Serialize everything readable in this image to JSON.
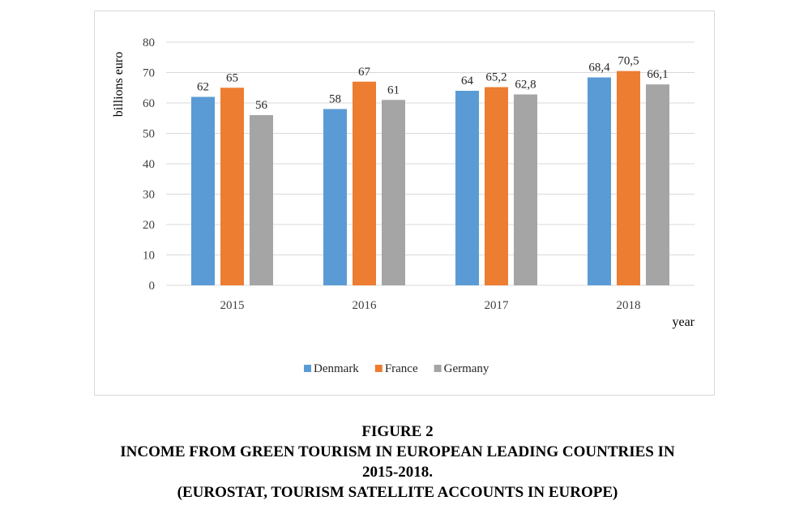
{
  "chart_data": {
    "type": "bar",
    "categories": [
      "2015",
      "2016",
      "2017",
      "2018"
    ],
    "series": [
      {
        "name": "Denmark",
        "color": "#5b9bd5",
        "values": [
          62,
          58,
          64,
          68.4
        ],
        "labels": [
          "62",
          "58",
          "64",
          "68,4"
        ]
      },
      {
        "name": "France",
        "color": "#ed7d31",
        "values": [
          65,
          67,
          65.2,
          70.5
        ],
        "labels": [
          "65",
          "67",
          "65,2",
          "70,5"
        ]
      },
      {
        "name": "Germany",
        "color": "#a5a5a5",
        "values": [
          56,
          61,
          62.8,
          66.1
        ],
        "labels": [
          "56",
          "61",
          "62,8",
          "66,1"
        ]
      }
    ],
    "ylabel": "billions euro",
    "xlabel": "year",
    "ylim": [
      0,
      80
    ],
    "yticks": [
      0,
      10,
      20,
      30,
      40,
      50,
      60,
      70,
      80
    ],
    "grid": true,
    "legend_position": "bottom"
  },
  "caption": {
    "line1": "FIGURE 2",
    "line2": "INCOME FROM GREEN TOURISM IN EUROPEAN LEADING COUNTRIES IN",
    "line3": "2015-2018.",
    "line4": "(EUROSTAT, TOURISM SATELLITE ACCOUNTS IN EUROPE)"
  }
}
